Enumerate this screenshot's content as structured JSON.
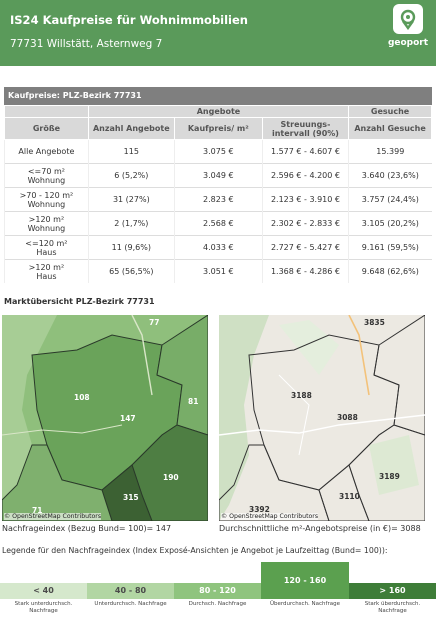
{
  "header": {
    "title": "IS24 Kaufpreise für Wohnimmobilien",
    "address": "77731 Willstätt, Asternweg 7",
    "logo_text": "geoport",
    "bg_color": "#5a9a5a"
  },
  "table": {
    "title": "Kaufpreise: PLZ-Bezirk 77731",
    "group_headers": {
      "angebote": "Angebote",
      "gesuche": "Gesuche"
    },
    "columns": [
      "Größe",
      "Anzahl Angebote",
      "Kaufpreis/ m²",
      "Streuungs-\nintervall (90%)",
      "Anzahl Gesuche"
    ],
    "rows": [
      {
        "groesse": "Alle Angebote",
        "anzahl": "115",
        "preis": "3.075 €",
        "intervall": "1.577 € - 4.607 €",
        "gesuche": "15.399"
      },
      {
        "groesse": "<=70 m²\nWohnung",
        "anzahl": "6 (5,2%)",
        "preis": "3.049 €",
        "intervall": "2.596 € - 4.200 €",
        "gesuche": "3.640 (23,6%)"
      },
      {
        "groesse": ">70 - 120 m²\nWohnung",
        "anzahl": "31 (27%)",
        "preis": "2.823 €",
        "intervall": "2.123 € - 3.910 €",
        "gesuche": "3.757 (24,4%)"
      },
      {
        "groesse": ">120 m²\nWohnung",
        "anzahl": "2 (1,7%)",
        "preis": "2.568 €",
        "intervall": "2.302 € - 2.833 €",
        "gesuche": "3.105 (20,2%)"
      },
      {
        "groesse": "<=120 m²\nHaus",
        "anzahl": "11 (9,6%)",
        "preis": "4.033 €",
        "intervall": "2.727 € - 5.427 €",
        "gesuche": "9.161 (59,5%)"
      },
      {
        "groesse": ">120 m²\nHaus",
        "anzahl": "65 (56,5%)",
        "preis": "3.051 €",
        "intervall": "1.368 € - 4.286 €",
        "gesuche": "9.648 (62,6%)"
      }
    ]
  },
  "market": {
    "title": "Marktübersicht PLZ-Bezirk 77731",
    "map1_labels": [
      "77",
      "108",
      "147",
      "81",
      "190",
      "315",
      "71"
    ],
    "map2_labels": [
      "3835",
      "3188",
      "3088",
      "3189",
      "3110",
      "3392"
    ],
    "attribution": "© OpenStreetMap Contributors",
    "caption1": "Nachfrageindex (Bezug Bund= 100)= 147",
    "caption2": "Durchschnittliche m²-Angebotspreise (in €)= 3088"
  },
  "legend": {
    "title": "Legende für den Nachfrageindex (Index Exposé-Ansichten je Angebot je Laufzeittag (Bund= 100)):",
    "items": [
      {
        "label": "< 40",
        "sub": "Stark unterdurchsch.\nNachfrage",
        "color": "#d5e8cc"
      },
      {
        "label": "40 - 80",
        "sub": "Unterdurchsch. Nachfrage",
        "color": "#b2d6a3"
      },
      {
        "label": "80 - 120",
        "sub": "Durchsch. Nachfrage",
        "color": "#8fc47e"
      },
      {
        "label": "120 - 160",
        "sub": "Überdurchsch. Nachfrage",
        "color": "#5ba04f"
      },
      {
        "label": "> 160",
        "sub": "Stark überdurchsch.\nNachfrage",
        "color": "#3e7d38"
      }
    ]
  }
}
